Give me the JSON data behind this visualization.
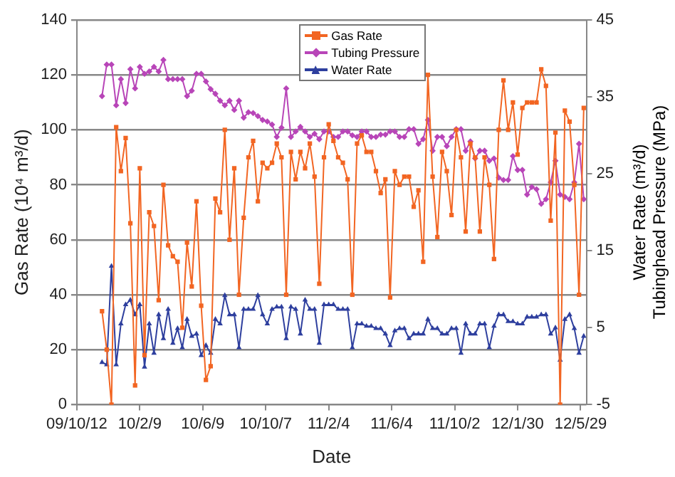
{
  "chart_data": {
    "type": "line",
    "xlabel": "Date",
    "ylabel": "Gas Rate (10⁴ m³/d)",
    "y2label": "Water Rate (m³/d)\nTubinghead Pressure (MPa)",
    "x": [
      "2009-11-29",
      "2009-12-08",
      "2009-12-17",
      "2009-12-26",
      "2010-01-04",
      "2010-01-13",
      "2010-01-22",
      "2010-01-31",
      "2010-02-09",
      "2010-02-18",
      "2010-02-27",
      "2010-03-08",
      "2010-03-17",
      "2010-03-26",
      "2010-04-04",
      "2010-04-13",
      "2010-04-22",
      "2010-05-01",
      "2010-05-10",
      "2010-05-19",
      "2010-05-28",
      "2010-06-06",
      "2010-06-15",
      "2010-06-24",
      "2010-07-03",
      "2010-07-12",
      "2010-07-21",
      "2010-07-30",
      "2010-08-08",
      "2010-08-17",
      "2010-08-26",
      "2010-09-04",
      "2010-09-13",
      "2010-09-22",
      "2010-10-01",
      "2010-10-10",
      "2010-10-19",
      "2010-10-28",
      "2010-11-06",
      "2010-11-15",
      "2010-11-24",
      "2010-12-03",
      "2010-12-12",
      "2010-12-21",
      "2010-12-30",
      "2011-01-08",
      "2011-01-17",
      "2011-01-26",
      "2011-02-04",
      "2011-02-13",
      "2011-02-22",
      "2011-03-03",
      "2011-03-12",
      "2011-03-21",
      "2011-03-30",
      "2011-04-08",
      "2011-04-17",
      "2011-04-26",
      "2011-05-05",
      "2011-05-14",
      "2011-05-23",
      "2011-06-01",
      "2011-06-10",
      "2011-06-19",
      "2011-06-28",
      "2011-07-07",
      "2011-07-16",
      "2011-07-25",
      "2011-08-03",
      "2011-08-12",
      "2011-08-21",
      "2011-08-30",
      "2011-09-08",
      "2011-09-17",
      "2011-09-26",
      "2011-10-05",
      "2011-10-14",
      "2011-10-23",
      "2011-11-01",
      "2011-11-10",
      "2011-11-19",
      "2011-11-28",
      "2011-12-07",
      "2011-12-16",
      "2011-12-25",
      "2012-01-03",
      "2012-01-12",
      "2012-01-21",
      "2012-01-30",
      "2012-02-08",
      "2012-02-17",
      "2012-02-26",
      "2012-03-06",
      "2012-03-15",
      "2012-03-24",
      "2012-04-02",
      "2012-04-11",
      "2012-04-20",
      "2012-04-29",
      "2012-05-08",
      "2012-05-17",
      "2012-05-26",
      "2012-06-04"
    ],
    "series": [
      {
        "name": "Gas Rate",
        "color": "#f26522",
        "marker": "square",
        "values": [
          34,
          20,
          0,
          101,
          85,
          97,
          66,
          7,
          86,
          18,
          70,
          65,
          38,
          80,
          58,
          54,
          52,
          28,
          59,
          43,
          74,
          36,
          9,
          14,
          75,
          70,
          100,
          60,
          86,
          40,
          68,
          90,
          96,
          74,
          88,
          86,
          88,
          95,
          90,
          40,
          92,
          82,
          92,
          86,
          95,
          83,
          44,
          90,
          102,
          96,
          90,
          88,
          82,
          40,
          95,
          98,
          92,
          92,
          85,
          77,
          82,
          39,
          85,
          80,
          83,
          83,
          72,
          78,
          52,
          120,
          83,
          61,
          92,
          85,
          69,
          100,
          90,
          63,
          95,
          90,
          63,
          90,
          80,
          53,
          100,
          118,
          100,
          110,
          91,
          108,
          110,
          110,
          110,
          122,
          116,
          67,
          99,
          0,
          107,
          103,
          80,
          40,
          108
        ]
      },
      {
        "name": "Tubing Pressure",
        "color": "#b845b8",
        "marker": "diamond",
        "axis": "y2",
        "values": [
          35.1,
          39.2,
          39.2,
          33.9,
          37.3,
          34.2,
          38.6,
          36.1,
          38.9,
          38,
          38.3,
          38.9,
          38.3,
          39.8,
          37.3,
          37.3,
          37.3,
          37.3,
          35.1,
          35.8,
          38,
          38,
          37,
          36,
          35.4,
          34.5,
          33.9,
          34.5,
          33.3,
          34.5,
          32.3,
          33,
          32.9,
          32.5,
          32,
          31.8,
          31.4,
          29.8,
          31,
          36.1,
          29.8,
          30.5,
          31.1,
          30.5,
          29.8,
          30.2,
          29.5,
          30.5,
          30.5,
          29.8,
          29.8,
          30.5,
          30.5,
          30,
          29.8,
          30.5,
          30.5,
          29.8,
          29.8,
          30.1,
          30.1,
          30.5,
          30.5,
          29.8,
          29.8,
          30.8,
          30.8,
          28.9,
          29.5,
          32,
          28,
          29.8,
          29.8,
          28.6,
          29.8,
          30.8,
          30.8,
          28,
          29.2,
          27,
          28,
          28,
          26.7,
          27,
          24.5,
          24.2,
          24.2,
          27.3,
          25.5,
          25.5,
          22.3,
          23.3,
          23,
          21.1,
          21.7,
          23.9,
          26.7,
          22.3,
          22,
          21.7,
          23.9,
          28.9,
          21.7
        ]
      },
      {
        "name": "Water Rate",
        "color": "#2e3f9e",
        "marker": "triangle",
        "axis": "y2",
        "values": [
          0.5,
          0.2,
          13,
          0.2,
          5.5,
          8,
          8.6,
          6.7,
          8,
          -0.1,
          5.5,
          1.7,
          6.7,
          3.6,
          7.4,
          3,
          4.9,
          2.4,
          6.1,
          3.9,
          4.2,
          1.4,
          2.7,
          1.7,
          6.1,
          5.5,
          9.2,
          6.7,
          6.7,
          2.4,
          7.4,
          7.4,
          7.4,
          9.2,
          6.7,
          5.5,
          7.4,
          7.7,
          7.7,
          3.6,
          7.7,
          7.4,
          4.2,
          8.6,
          7.4,
          7.4,
          3,
          8,
          8,
          8,
          7.4,
          7.4,
          7.4,
          2.4,
          5.5,
          5.5,
          5.2,
          5.2,
          4.9,
          4.9,
          4.2,
          2.7,
          4.6,
          4.9,
          4.9,
          3.6,
          4.2,
          4.2,
          4.2,
          6.1,
          4.9,
          4.9,
          4.2,
          4.2,
          4.9,
          4.9,
          1.7,
          5.5,
          4.2,
          4.2,
          5.5,
          5.5,
          2.4,
          5.2,
          6.7,
          6.7,
          5.8,
          5.8,
          5.5,
          5.5,
          6.4,
          6.4,
          6.4,
          6.7,
          6.7,
          4.2,
          5,
          0.8,
          6.1,
          6.7,
          4.9,
          1.7,
          3.9
        ]
      }
    ],
    "xlim": [
      "2009-10-12",
      "2012-06-09"
    ],
    "xticks": [
      {
        "value": "2009-10-12",
        "label": "09/10/12"
      },
      {
        "value": "2010-02-09",
        "label": "10/2/9"
      },
      {
        "value": "2010-06-09",
        "label": "10/6/9"
      },
      {
        "value": "2010-10-07",
        "label": "10/10/7"
      },
      {
        "value": "2011-02-04",
        "label": "11/2/4"
      },
      {
        "value": "2011-06-04",
        "label": "11/6/4"
      },
      {
        "value": "2011-10-02",
        "label": "11/10/2"
      },
      {
        "value": "2012-01-30",
        "label": "12/1/30"
      },
      {
        "value": "2012-05-29",
        "label": "12/5/29"
      }
    ],
    "ylim": [
      0,
      140
    ],
    "yticks": [
      0,
      20,
      40,
      60,
      80,
      100,
      120,
      140
    ],
    "y2lim": [
      -5,
      45
    ],
    "y2ticks": [
      -5,
      5,
      15,
      25,
      35,
      45
    ],
    "grid": "y",
    "legend": "top"
  }
}
